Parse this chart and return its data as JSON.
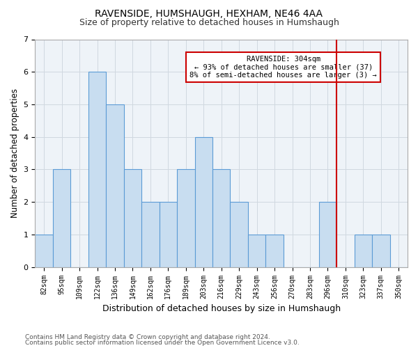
{
  "title1": "RAVENSIDE, HUMSHAUGH, HEXHAM, NE46 4AA",
  "title2": "Size of property relative to detached houses in Humshaugh",
  "xlabel": "Distribution of detached houses by size in Humshaugh",
  "ylabel": "Number of detached properties",
  "categories": [
    "82sqm",
    "95sqm",
    "109sqm",
    "122sqm",
    "136sqm",
    "149sqm",
    "162sqm",
    "176sqm",
    "189sqm",
    "203sqm",
    "216sqm",
    "229sqm",
    "243sqm",
    "256sqm",
    "270sqm",
    "283sqm",
    "296sqm",
    "310sqm",
    "323sqm",
    "337sqm",
    "350sqm"
  ],
  "values": [
    1,
    3,
    0,
    6,
    5,
    3,
    2,
    2,
    3,
    4,
    3,
    2,
    1,
    1,
    0,
    0,
    2,
    0,
    1,
    1,
    0
  ],
  "bar_color": "#c8ddf0",
  "bar_edge_color": "#5b9bd5",
  "grid_color": "#d0d8e0",
  "vline_color": "#cc0000",
  "annotation_text": "RAVENSIDE: 304sqm\n← 93% of detached houses are smaller (37)\n8% of semi-detached houses are larger (3) →",
  "annotation_bg": "#ffffff",
  "ylim": [
    0,
    7
  ],
  "yticks": [
    0,
    1,
    2,
    3,
    4,
    5,
    6,
    7
  ],
  "footer1": "Contains HM Land Registry data © Crown copyright and database right 2024.",
  "footer2": "Contains public sector information licensed under the Open Government Licence v3.0.",
  "title1_fontsize": 10,
  "title2_fontsize": 9,
  "tick_fontsize": 7,
  "ylabel_fontsize": 8.5,
  "xlabel_fontsize": 9,
  "footer_fontsize": 6.5,
  "plot_bg": "#eef3f8"
}
